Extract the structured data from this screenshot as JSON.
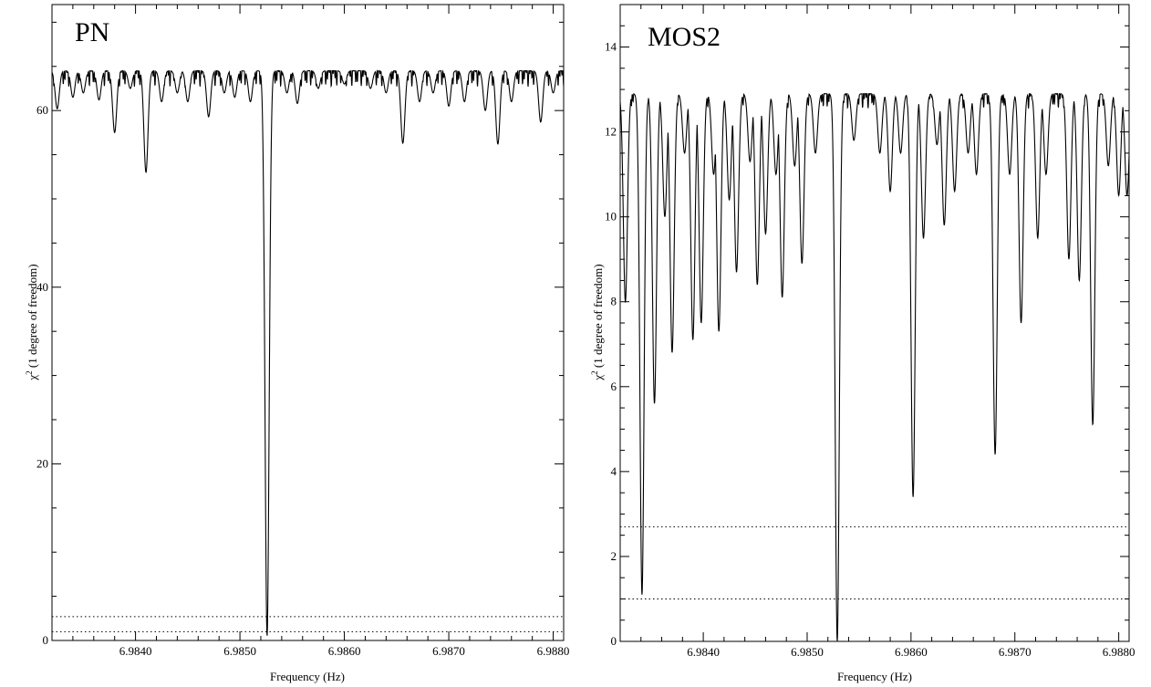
{
  "chart_data": [
    {
      "type": "line",
      "title": "PN",
      "xlabel": "Frequency (Hz)",
      "ylabel_prefix": "χ",
      "ylabel_sup": "2",
      "ylabel_suffix": " (1 degree of freedom)",
      "xlim": [
        6.9832,
        6.9881
      ],
      "ylim": [
        0,
        72
      ],
      "xticks": [
        6.984,
        6.985,
        6.986,
        6.987,
        6.988
      ],
      "xtick_labels": [
        "6.9840",
        "6.9850",
        "6.9860",
        "6.9870",
        "6.9880"
      ],
      "yticks": [
        0,
        20,
        40,
        60
      ],
      "ytick_labels": [
        "0",
        "20",
        "40",
        "60"
      ],
      "ref_lines": [
        2.7,
        1.0
      ],
      "grid": false,
      "baseline": 64.5,
      "dips": [
        [
          6.98325,
          60.2
        ],
        [
          6.9834,
          61.5
        ],
        [
          6.9835,
          62.0
        ],
        [
          6.98365,
          61.2
        ],
        [
          6.9838,
          57.5
        ],
        [
          6.98395,
          62.5
        ],
        [
          6.9841,
          53.0
        ],
        [
          6.98425,
          61.0
        ],
        [
          6.9844,
          62.0
        ],
        [
          6.9845,
          61.0
        ],
        [
          6.9847,
          59.3
        ],
        [
          6.98485,
          62.0
        ],
        [
          6.98495,
          61.5
        ],
        [
          6.9851,
          61.0
        ],
        [
          6.98526,
          0.5
        ],
        [
          6.98545,
          62.0
        ],
        [
          6.98555,
          60.8
        ],
        [
          6.98575,
          62.5
        ],
        [
          6.986,
          63.0
        ],
        [
          6.98625,
          62.5
        ],
        [
          6.9864,
          62.0
        ],
        [
          6.98656,
          56.3
        ],
        [
          6.98672,
          61.0
        ],
        [
          6.98685,
          62.0
        ],
        [
          6.987,
          60.5
        ],
        [
          6.98715,
          61.0
        ],
        [
          6.98735,
          60.0
        ],
        [
          6.98747,
          56.2
        ],
        [
          6.9876,
          61.0
        ],
        [
          6.98788,
          58.7
        ],
        [
          6.988,
          62.0
        ]
      ]
    },
    {
      "type": "line",
      "title": "MOS2",
      "xlabel": "Frequency (Hz)",
      "ylabel_prefix": "χ",
      "ylabel_sup": "2",
      "ylabel_suffix": " (1 degree of freedom)",
      "xlim": [
        6.9832,
        6.9881
      ],
      "ylim": [
        0,
        15
      ],
      "xticks": [
        6.984,
        6.985,
        6.986,
        6.987,
        6.988
      ],
      "xtick_labels": [
        "6.9840",
        "6.9850",
        "6.9860",
        "6.9870",
        "6.9880"
      ],
      "yticks": [
        0,
        2,
        4,
        6,
        8,
        10,
        12,
        14
      ],
      "ytick_labels": [
        "0",
        "2",
        "4",
        "6",
        "8",
        "10",
        "12",
        "14"
      ],
      "ref_lines": [
        2.7,
        1.0
      ],
      "grid": false,
      "baseline": 12.9,
      "dips": [
        [
          6.98325,
          8.0
        ],
        [
          6.98341,
          1.1
        ],
        [
          6.98353,
          5.6
        ],
        [
          6.98363,
          10.0
        ],
        [
          6.9837,
          6.8
        ],
        [
          6.98382,
          11.5
        ],
        [
          6.9839,
          7.1
        ],
        [
          6.98398,
          7.5
        ],
        [
          6.9841,
          11.0
        ],
        [
          6.98415,
          7.3
        ],
        [
          6.98425,
          10.4
        ],
        [
          6.98432,
          8.7
        ],
        [
          6.98445,
          11.3
        ],
        [
          6.98452,
          8.4
        ],
        [
          6.9846,
          9.6
        ],
        [
          6.9847,
          11.0
        ],
        [
          6.98476,
          8.1
        ],
        [
          6.98488,
          11.2
        ],
        [
          6.98495,
          8.9
        ],
        [
          6.98508,
          11.5
        ],
        [
          6.98529,
          0.0
        ],
        [
          6.98545,
          11.8
        ],
        [
          6.9857,
          11.5
        ],
        [
          6.9858,
          10.6
        ],
        [
          6.9859,
          11.5
        ],
        [
          6.98602,
          3.4
        ],
        [
          6.98612,
          9.5
        ],
        [
          6.98625,
          11.7
        ],
        [
          6.98632,
          9.8
        ],
        [
          6.98642,
          10.6
        ],
        [
          6.98655,
          11.5
        ],
        [
          6.98663,
          11.0
        ],
        [
          6.98681,
          4.4
        ],
        [
          6.98695,
          11.0
        ],
        [
          6.98706,
          7.5
        ],
        [
          6.98722,
          9.5
        ],
        [
          6.9873,
          11.0
        ],
        [
          6.98752,
          9.0
        ],
        [
          6.98762,
          8.5
        ],
        [
          6.98775,
          5.1
        ],
        [
          6.9879,
          11.2
        ],
        [
          6.988,
          10.5
        ],
        [
          6.98808,
          10.5
        ]
      ]
    }
  ]
}
